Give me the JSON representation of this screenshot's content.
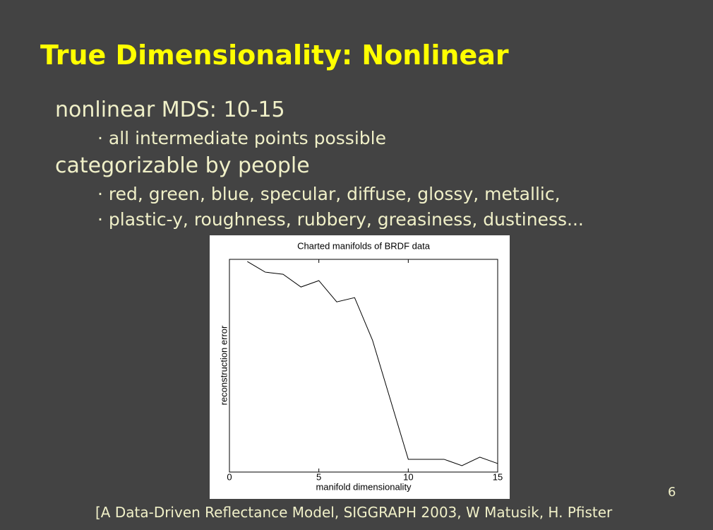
{
  "slide": {
    "title": "True Dimensionality: Nonlinear",
    "bullets": [
      {
        "text": "nonlinear MDS: 10-15",
        "sub": [
          "all intermediate points possible"
        ]
      },
      {
        "text": "categorizable by people",
        "sub": [
          "red, green, blue, specular, diffuse, glossy, metallic,",
          "plastic-y, roughness, rubbery, greasiness, dustiness..."
        ]
      }
    ],
    "citation": "[A Data-Driven Reflectance Model, SIGGRAPH 2003, W Matusik, H. Pfister",
    "page_number": "6"
  },
  "chart_data": {
    "type": "line",
    "title": "Charted manifolds of BRDF data",
    "x_label": "manifold dimensionality",
    "y_label": "reconstruction error",
    "x": [
      1,
      2,
      3,
      4,
      5,
      6,
      7,
      8,
      9,
      10,
      11,
      12,
      13,
      14,
      15
    ],
    "series": [
      {
        "color": "#000000",
        "values": [
          0.99,
          0.94,
          0.93,
          0.87,
          0.9,
          0.8,
          0.82,
          0.62,
          0.34,
          0.06,
          0.06,
          0.06,
          0.03,
          0.07,
          0.04
        ]
      }
    ],
    "xlim": [
      0,
      15
    ],
    "xticks": [
      0,
      5,
      10,
      15
    ],
    "ylim": [
      0,
      1
    ]
  }
}
